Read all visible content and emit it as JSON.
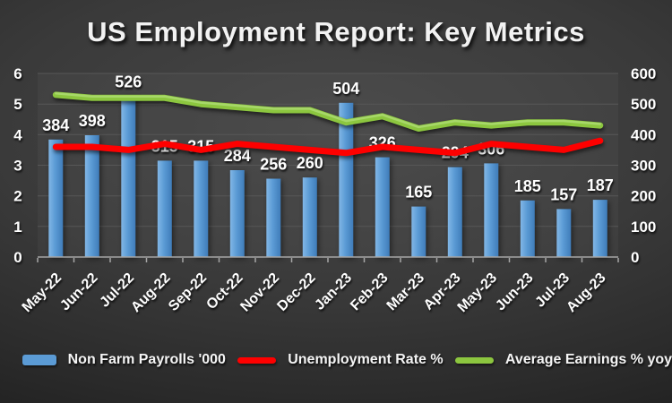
{
  "chart_data": {
    "type": "combo (bar + 2 lines)",
    "title": "US Employment Report: Key Metrics",
    "categories": [
      "May-22",
      "Jun-22",
      "Jul-22",
      "Aug-22",
      "Sep-22",
      "Oct-22",
      "Nov-22",
      "Dec-22",
      "Jan-23",
      "Feb-23",
      "Mar-23",
      "Apr-23",
      "May-23",
      "Jun-23",
      "Jul-23",
      "Aug-23"
    ],
    "series": [
      {
        "name": "Non Farm Payrolls '000",
        "type": "bar",
        "axis": "right",
        "color": "#5b9bd5",
        "data_labels": true,
        "values": [
          384,
          398,
          526,
          315,
          315,
          284,
          256,
          260,
          504,
          326,
          165,
          294,
          306,
          185,
          157,
          187
        ]
      },
      {
        "name": "Unemployment Rate %",
        "type": "line",
        "axis": "left",
        "color": "#fe0000",
        "values": [
          3.6,
          3.6,
          3.5,
          3.7,
          3.5,
          3.7,
          3.6,
          3.5,
          3.4,
          3.6,
          3.5,
          3.4,
          3.7,
          3.6,
          3.5,
          3.8
        ]
      },
      {
        "name": "Average Earnings % yoy",
        "type": "line",
        "axis": "left",
        "color": "#8cc63f",
        "highlight": "#aad96e",
        "values": [
          5.3,
          5.2,
          5.2,
          5.2,
          5.0,
          4.9,
          4.8,
          4.8,
          4.4,
          4.6,
          4.2,
          4.4,
          4.3,
          4.4,
          4.4,
          4.3
        ]
      }
    ],
    "left_axis": {
      "min": 0,
      "max": 6,
      "step": 1,
      "ticks": [
        "0",
        "1",
        "2",
        "3",
        "4",
        "5",
        "6"
      ]
    },
    "right_axis": {
      "min": 0,
      "max": 600,
      "step": 100,
      "ticks": [
        "0",
        "100",
        "200",
        "300",
        "400",
        "500",
        "600"
      ]
    },
    "grid": true,
    "legend_position": "bottom",
    "x_label_rotation_deg": -45
  }
}
